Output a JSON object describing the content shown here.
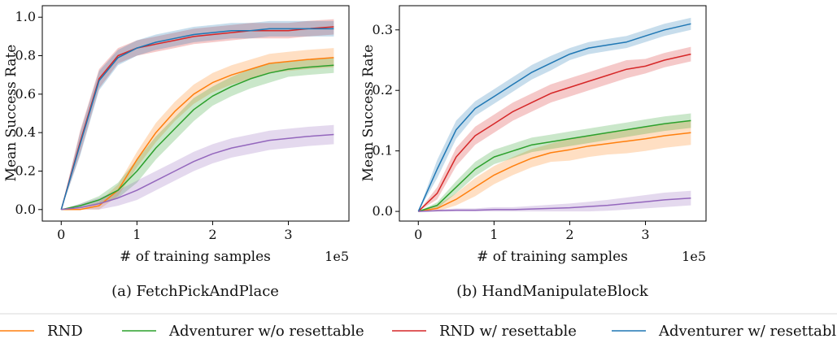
{
  "series_styles": [
    {
      "name": "RND",
      "color": "#ff7f0e"
    },
    {
      "name": "Adventurer w/o resettable",
      "color": "#2ca02c"
    },
    {
      "name": "RND w/ resettable",
      "color": "#d62728"
    },
    {
      "name": "Adventurer w/ resettable",
      "color": "#1f77b4"
    }
  ],
  "legend": {
    "placement": "bottom",
    "entries": [
      "RND",
      "Adventurer w/o resettable",
      "RND w/ resettable",
      "Adventurer w/ resettable"
    ]
  },
  "chart_data": [
    {
      "type": "line",
      "caption": "(a) FetchPickAndPlace",
      "xlabel": "# of training samples",
      "ylabel": "Mean Success Rate",
      "x_multiplier": "1e5",
      "xlim": [
        -0.25,
        3.8
      ],
      "ylim": [
        -0.06,
        1.06
      ],
      "xticks": [
        0,
        1,
        2,
        3
      ],
      "yticks": [
        0.0,
        0.2,
        0.4,
        0.6,
        0.8,
        1.0
      ],
      "ytick_labels": [
        "0.0",
        "0.2",
        "0.4",
        "0.6",
        "0.8",
        "1.0"
      ],
      "grid": false,
      "x": [
        0,
        0.25,
        0.5,
        0.75,
        1.0,
        1.25,
        1.5,
        1.75,
        2.0,
        2.25,
        2.5,
        2.75,
        3.0,
        3.25,
        3.6
      ],
      "series": [
        {
          "name": "RND",
          "values": [
            0,
            0.0,
            0.02,
            0.1,
            0.26,
            0.4,
            0.51,
            0.6,
            0.66,
            0.7,
            0.73,
            0.76,
            0.77,
            0.78,
            0.79
          ],
          "band": [
            0,
            0.01,
            0.02,
            0.03,
            0.04,
            0.05,
            0.05,
            0.05,
            0.05,
            0.05,
            0.05,
            0.05,
            0.05,
            0.05,
            0.05
          ]
        },
        {
          "name": "Adventurer w/o resettable",
          "values": [
            0,
            0.02,
            0.05,
            0.1,
            0.2,
            0.32,
            0.42,
            0.52,
            0.59,
            0.64,
            0.68,
            0.71,
            0.73,
            0.74,
            0.75
          ],
          "band": [
            0,
            0.01,
            0.02,
            0.04,
            0.06,
            0.06,
            0.06,
            0.06,
            0.05,
            0.05,
            0.05,
            0.05,
            0.04,
            0.04,
            0.04
          ]
        },
        {
          "name": "RND w/ resettable",
          "values": [
            0,
            0.35,
            0.68,
            0.8,
            0.84,
            0.86,
            0.88,
            0.9,
            0.91,
            0.92,
            0.93,
            0.93,
            0.93,
            0.94,
            0.95
          ],
          "band": [
            0,
            0.06,
            0.05,
            0.04,
            0.04,
            0.04,
            0.04,
            0.04,
            0.04,
            0.04,
            0.04,
            0.04,
            0.04,
            0.04,
            0.04
          ]
        },
        {
          "name": "Adventurer w/ resettable",
          "values": [
            0,
            0.34,
            0.67,
            0.79,
            0.84,
            0.87,
            0.89,
            0.91,
            0.92,
            0.93,
            0.93,
            0.94,
            0.94,
            0.94,
            0.94
          ],
          "band": [
            0,
            0.06,
            0.05,
            0.04,
            0.04,
            0.04,
            0.04,
            0.04,
            0.04,
            0.04,
            0.04,
            0.04,
            0.04,
            0.04,
            0.04
          ]
        },
        {
          "name": "purple",
          "color": "#9467bd",
          "values": [
            0,
            0.01,
            0.03,
            0.06,
            0.1,
            0.15,
            0.2,
            0.25,
            0.29,
            0.32,
            0.34,
            0.36,
            0.37,
            0.38,
            0.39
          ],
          "band": [
            0,
            0.02,
            0.03,
            0.04,
            0.05,
            0.05,
            0.05,
            0.05,
            0.05,
            0.05,
            0.05,
            0.05,
            0.05,
            0.05,
            0.05
          ]
        }
      ]
    },
    {
      "type": "line",
      "caption": "(b) HandManipulateBlock",
      "xlabel": "# of training samples",
      "ylabel": "Mean Success Rate",
      "x_multiplier": "1e5",
      "xlim": [
        -0.25,
        3.8
      ],
      "ylim": [
        -0.016,
        0.34
      ],
      "xticks": [
        0,
        1,
        2,
        3
      ],
      "yticks": [
        0.0,
        0.1,
        0.2,
        0.3
      ],
      "ytick_labels": [
        "0.0",
        "0.1",
        "0.2",
        "0.3"
      ],
      "grid": false,
      "x": [
        0,
        0.25,
        0.5,
        0.75,
        1.0,
        1.25,
        1.5,
        1.75,
        2.0,
        2.25,
        2.5,
        2.75,
        3.0,
        3.25,
        3.6
      ],
      "series": [
        {
          "name": "RND",
          "values": [
            0,
            0.005,
            0.02,
            0.04,
            0.06,
            0.075,
            0.088,
            0.097,
            0.102,
            0.108,
            0.112,
            0.116,
            0.12,
            0.125,
            0.13
          ],
          "band": [
            0,
            0.005,
            0.01,
            0.015,
            0.015,
            0.015,
            0.015,
            0.015,
            0.018,
            0.018,
            0.018,
            0.02,
            0.02,
            0.02,
            0.02
          ]
        },
        {
          "name": "Adventurer w/o resettable",
          "values": [
            0,
            0.01,
            0.04,
            0.07,
            0.09,
            0.1,
            0.11,
            0.115,
            0.12,
            0.125,
            0.13,
            0.135,
            0.14,
            0.145,
            0.15
          ],
          "band": [
            0,
            0.005,
            0.01,
            0.012,
            0.012,
            0.012,
            0.012,
            0.012,
            0.012,
            0.012,
            0.012,
            0.012,
            0.012,
            0.012,
            0.012
          ]
        },
        {
          "name": "RND w/ resettable",
          "values": [
            0,
            0.03,
            0.09,
            0.125,
            0.145,
            0.165,
            0.18,
            0.195,
            0.205,
            0.215,
            0.225,
            0.235,
            0.24,
            0.25,
            0.26
          ],
          "band": [
            0,
            0.01,
            0.015,
            0.015,
            0.015,
            0.015,
            0.015,
            0.015,
            0.015,
            0.015,
            0.015,
            0.015,
            0.012,
            0.012,
            0.012
          ]
        },
        {
          "name": "Adventurer w/ resettable",
          "values": [
            0,
            0.07,
            0.135,
            0.17,
            0.19,
            0.21,
            0.23,
            0.245,
            0.26,
            0.27,
            0.275,
            0.28,
            0.29,
            0.3,
            0.31
          ],
          "band": [
            0,
            0.015,
            0.015,
            0.012,
            0.012,
            0.012,
            0.012,
            0.012,
            0.01,
            0.01,
            0.01,
            0.01,
            0.01,
            0.01,
            0.01
          ]
        },
        {
          "name": "purple",
          "color": "#9467bd",
          "values": [
            0,
            0.001,
            0.002,
            0.002,
            0.003,
            0.003,
            0.004,
            0.005,
            0.006,
            0.008,
            0.01,
            0.013,
            0.016,
            0.019,
            0.022
          ],
          "band": [
            0,
            0.002,
            0.003,
            0.003,
            0.004,
            0.004,
            0.005,
            0.006,
            0.007,
            0.008,
            0.009,
            0.01,
            0.011,
            0.012,
            0.012
          ]
        }
      ]
    }
  ]
}
